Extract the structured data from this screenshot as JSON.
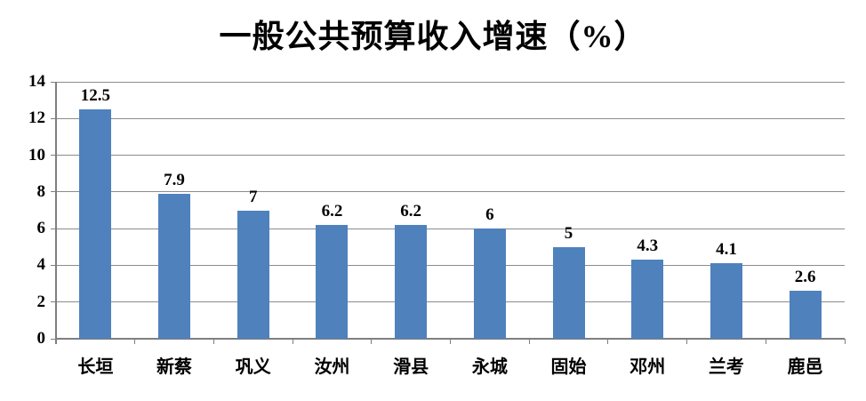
{
  "chart_data": {
    "type": "bar",
    "title": "一般公共预算收入增速（%）",
    "categories": [
      "长垣",
      "新蔡",
      "巩义",
      "汝州",
      "滑县",
      "永城",
      "固始",
      "邓州",
      "兰考",
      "鹿邑"
    ],
    "values": [
      12.5,
      7.9,
      7,
      6.2,
      6.2,
      6,
      5,
      4.3,
      4.1,
      2.6
    ],
    "xlabel": "",
    "ylabel": "",
    "ylim": [
      0,
      14
    ],
    "ytick_step": 2,
    "yticks": [
      0,
      2,
      4,
      6,
      8,
      10,
      12,
      14
    ],
    "grid": true,
    "legend": "none",
    "bar_color": "#4F81BD",
    "gridline_color": "#8C8C8C",
    "axis_color": "#7F7F7F",
    "text_color": "#000000",
    "background": "#FFFFFF"
  }
}
